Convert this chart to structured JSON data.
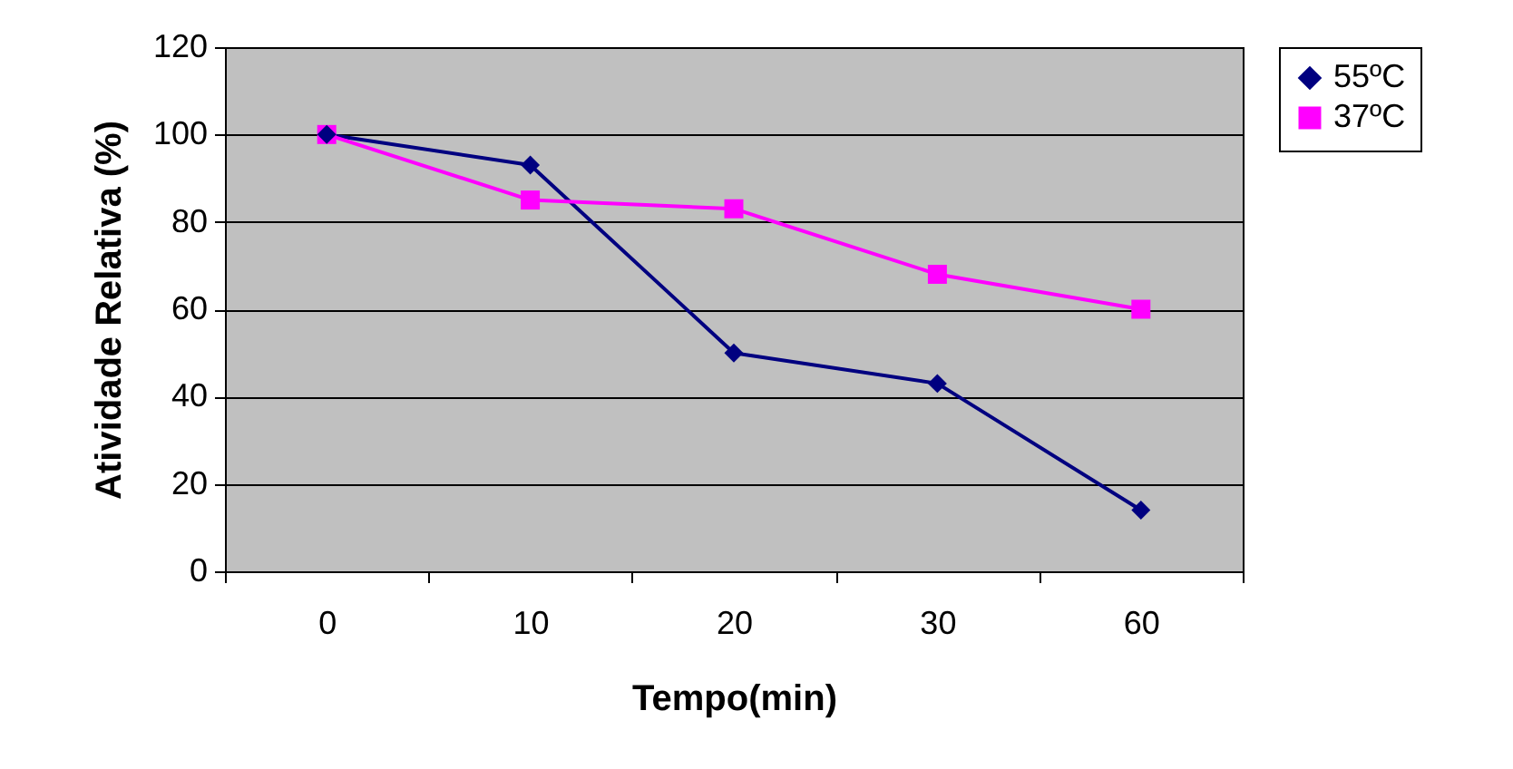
{
  "chart_data": {
    "type": "line",
    "xlabel": "Tempo(min)",
    "ylabel": "Atividade Relativa (%)",
    "categories": [
      "0",
      "10",
      "20",
      "30",
      "60"
    ],
    "series": [
      {
        "name": "55ºC",
        "color": "#000080",
        "marker": "diamond",
        "values": [
          100,
          93,
          50,
          43,
          14
        ]
      },
      {
        "name": "37ºC",
        "color": "#ff00ff",
        "marker": "square",
        "values": [
          100,
          85,
          83,
          68,
          60
        ]
      }
    ],
    "ylim": [
      0,
      120
    ],
    "yticks": [
      0,
      20,
      40,
      60,
      80,
      100,
      120
    ],
    "grid": "y",
    "legend": "right",
    "line_style": "solid"
  }
}
